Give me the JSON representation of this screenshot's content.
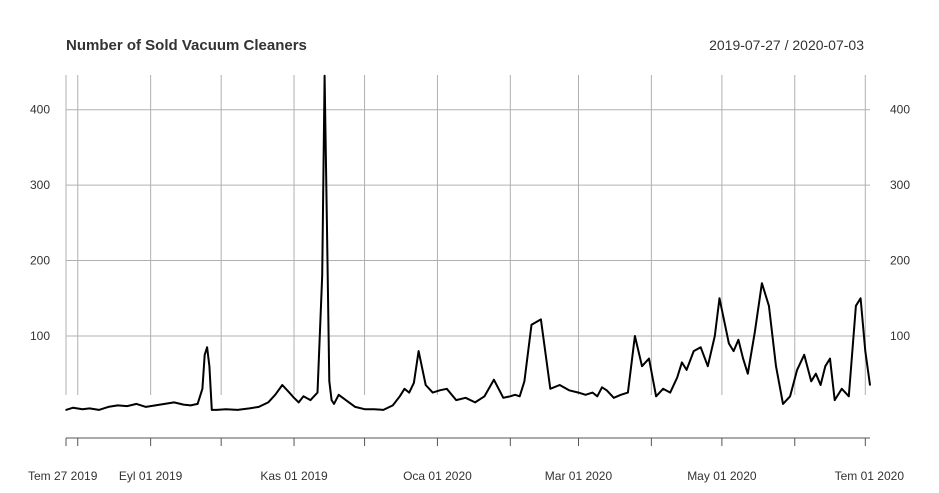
{
  "chart_data": {
    "type": "line",
    "title": "Number of Sold Vacuum Cleaners",
    "date_range_label": "2019-07-27 / 2020-07-03",
    "x_start": "2019-07-27",
    "x_end": "2020-07-03",
    "ylim": [
      -18,
      446
    ],
    "y_ticks": [
      100,
      200,
      300,
      400
    ],
    "x_ticks": [
      {
        "date": "2019-07-27",
        "label": "Tem 27 2019"
      },
      {
        "date": "2019-09-01",
        "label": "Eyl 01 2019"
      },
      {
        "date": "2019-11-01",
        "label": "Kas 01 2019"
      },
      {
        "date": "2020-01-01",
        "label": "Oca 01 2020"
      },
      {
        "date": "2020-03-01",
        "label": "Mar 01 2020"
      },
      {
        "date": "2020-05-01",
        "label": "May 01 2020"
      },
      {
        "date": "2020-07-01",
        "label": "Tem 01 2020"
      }
    ],
    "minor_ticks": [
      "2019-08-01",
      "2019-10-01",
      "2019-12-01",
      "2020-02-01",
      "2020-04-01",
      "2020-06-01"
    ],
    "grid": true,
    "series": [
      {
        "color": "#000000",
        "x": [
          "2019-07-27",
          "2019-07-30",
          "2019-08-03",
          "2019-08-06",
          "2019-08-10",
          "2019-08-14",
          "2019-08-18",
          "2019-08-22",
          "2019-08-26",
          "2019-08-30",
          "2019-09-03",
          "2019-09-07",
          "2019-09-11",
          "2019-09-15",
          "2019-09-18",
          "2019-09-21",
          "2019-09-23",
          "2019-09-24",
          "2019-09-25",
          "2019-09-26",
          "2019-09-27",
          "2019-09-29",
          "2019-10-03",
          "2019-10-08",
          "2019-10-13",
          "2019-10-17",
          "2019-10-21",
          "2019-10-24",
          "2019-10-27",
          "2019-10-30",
          "2019-11-01",
          "2019-11-03",
          "2019-11-05",
          "2019-11-08",
          "2019-11-11",
          "2019-11-13",
          "2019-11-14",
          "2019-11-15",
          "2019-11-16",
          "2019-11-17",
          "2019-11-18",
          "2019-11-20",
          "2019-11-23",
          "2019-11-27",
          "2019-12-01",
          "2019-12-05",
          "2019-12-09",
          "2019-12-13",
          "2019-12-16",
          "2019-12-18",
          "2019-12-20",
          "2019-12-22",
          "2019-12-24",
          "2019-12-27",
          "2019-12-30",
          "2020-01-02",
          "2020-01-05",
          "2020-01-09",
          "2020-01-13",
          "2020-01-17",
          "2020-01-21",
          "2020-01-25",
          "2020-01-29",
          "2020-02-01",
          "2020-02-03",
          "2020-02-05",
          "2020-02-07",
          "2020-02-10",
          "2020-02-14",
          "2020-02-18",
          "2020-02-22",
          "2020-02-26",
          "2020-03-01",
          "2020-03-04",
          "2020-03-07",
          "2020-03-09",
          "2020-03-11",
          "2020-03-13",
          "2020-03-16",
          "2020-03-19",
          "2020-03-22",
          "2020-03-25",
          "2020-03-28",
          "2020-03-31",
          "2020-04-03",
          "2020-04-06",
          "2020-04-09",
          "2020-04-12",
          "2020-04-14",
          "2020-04-16",
          "2020-04-19",
          "2020-04-22",
          "2020-04-25",
          "2020-04-28",
          "2020-04-30",
          "2020-05-02",
          "2020-05-04",
          "2020-05-06",
          "2020-05-08",
          "2020-05-10",
          "2020-05-12",
          "2020-05-15",
          "2020-05-18",
          "2020-05-21",
          "2020-05-24",
          "2020-05-27",
          "2020-05-30",
          "2020-06-02",
          "2020-06-05",
          "2020-06-08",
          "2020-06-10",
          "2020-06-12",
          "2020-06-14",
          "2020-06-16",
          "2020-06-18",
          "2020-06-21",
          "2020-06-24",
          "2020-06-27",
          "2020-06-29",
          "2020-07-01",
          "2020-07-03"
        ],
        "y": [
          2,
          5,
          3,
          4,
          2,
          6,
          8,
          7,
          10,
          6,
          8,
          10,
          12,
          9,
          8,
          10,
          30,
          75,
          85,
          60,
          2,
          2,
          3,
          2,
          4,
          6,
          12,
          22,
          35,
          25,
          18,
          12,
          20,
          15,
          25,
          180,
          445,
          250,
          40,
          15,
          10,
          22,
          15,
          6,
          3,
          3,
          2,
          8,
          20,
          30,
          25,
          38,
          80,
          35,
          25,
          28,
          30,
          15,
          18,
          12,
          20,
          42,
          18,
          20,
          22,
          20,
          40,
          115,
          122,
          30,
          35,
          28,
          25,
          22,
          25,
          20,
          32,
          28,
          18,
          22,
          25,
          100,
          60,
          70,
          20,
          30,
          25,
          45,
          65,
          55,
          80,
          85,
          60,
          100,
          150,
          120,
          90,
          80,
          95,
          70,
          50,
          105,
          170,
          140,
          60,
          10,
          20,
          55,
          75,
          40,
          50,
          35,
          60,
          70,
          15,
          30,
          20,
          140,
          150,
          80,
          35
        ]
      }
    ]
  }
}
